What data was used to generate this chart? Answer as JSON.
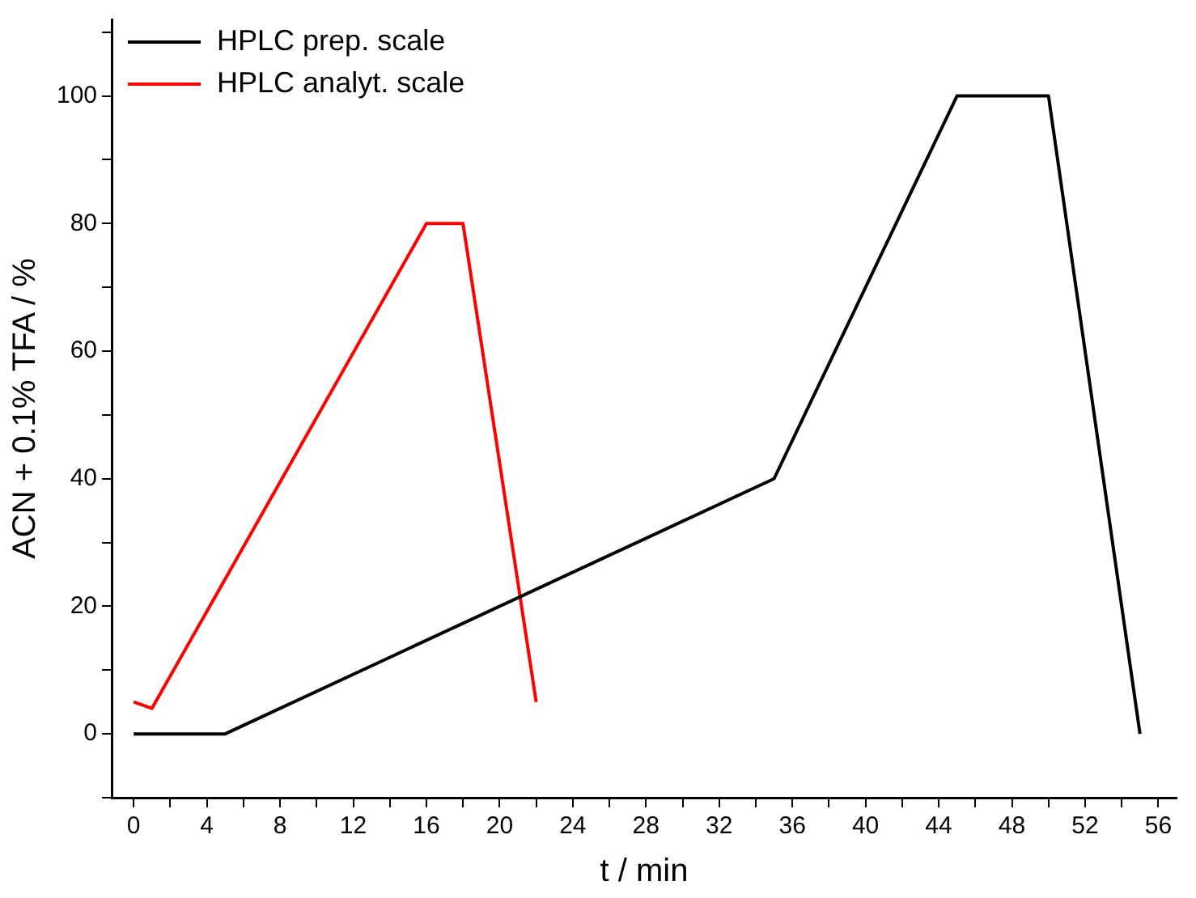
{
  "chart_data": {
    "type": "line",
    "xlabel": "t / min",
    "ylabel": "ACN + 0.1% TFA / %",
    "xlim": [
      -1.2,
      57
    ],
    "ylim": [
      -10,
      112
    ],
    "xticks": [
      0,
      {
        "value": 2,
        "label": null
      },
      4,
      {
        "value": 6,
        "label": null
      },
      8,
      {
        "value": 10,
        "label": null
      },
      12,
      {
        "value": 14,
        "label": null
      },
      16,
      {
        "value": 18,
        "label": null
      },
      20,
      {
        "value": 22,
        "label": null
      },
      24,
      {
        "value": 26,
        "label": null
      },
      28,
      {
        "value": 30,
        "label": null
      },
      32,
      {
        "value": 34,
        "label": null
      },
      36,
      {
        "value": 38,
        "label": null
      },
      40,
      {
        "value": 42,
        "label": null
      },
      44,
      {
        "value": 46,
        "label": null
      },
      48,
      {
        "value": 50,
        "label": null
      },
      52,
      {
        "value": 54,
        "label": null
      },
      56
    ],
    "yticks": [
      {
        "value": -10,
        "label": null
      },
      0,
      {
        "value": 10,
        "label": null
      },
      20,
      {
        "value": 30,
        "label": null
      },
      40,
      {
        "value": 50,
        "label": null
      },
      60,
      {
        "value": 70,
        "label": null
      },
      80,
      {
        "value": 90,
        "label": null
      },
      100,
      {
        "value": 110,
        "label": null
      }
    ],
    "grid": false,
    "legend": "top left",
    "marker": "none",
    "line_style": "solid",
    "series": [
      {
        "name": "HPLC prep. scale",
        "color": "#000000",
        "x": [
          0,
          5,
          35,
          45,
          50,
          55
        ],
        "values": [
          0,
          0,
          40,
          100,
          100,
          0
        ]
      },
      {
        "name": "HPLC analyt. scale",
        "color": "#ff0000",
        "x": [
          0,
          1,
          16,
          18,
          22
        ],
        "values": [
          5,
          4,
          80,
          80,
          5
        ]
      }
    ]
  }
}
